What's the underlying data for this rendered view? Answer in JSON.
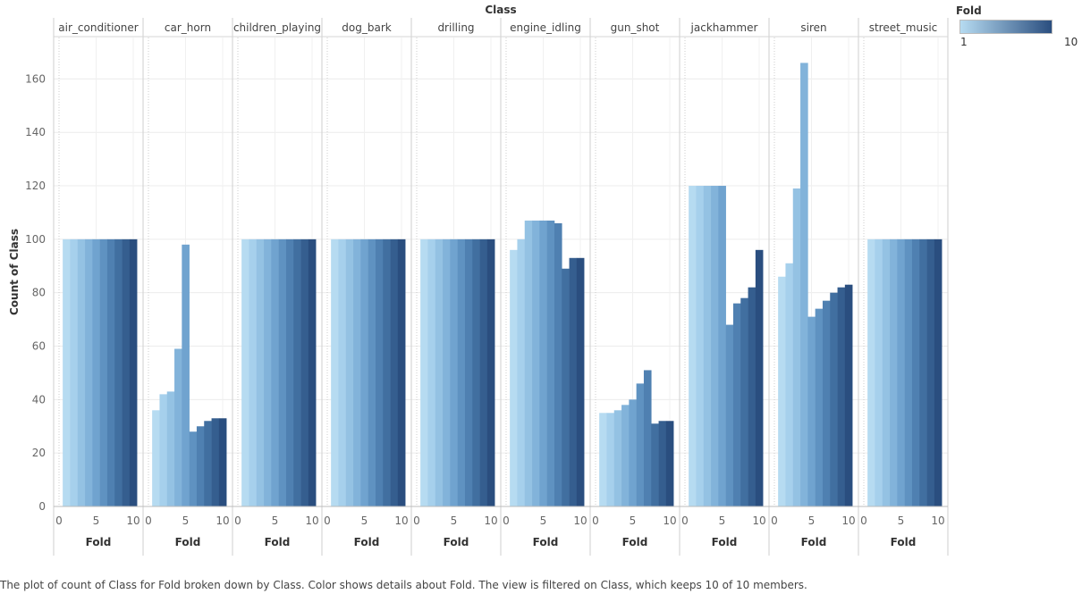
{
  "chart_data": {
    "type": "bar",
    "title": "Class",
    "xlabel": "Fold",
    "ylabel": "Count of Class",
    "ylim": [
      0,
      170
    ],
    "yticks": [
      0,
      20,
      40,
      60,
      80,
      100,
      120,
      140,
      160
    ],
    "xlim": [
      0,
      11
    ],
    "xticks": [
      0,
      5,
      10
    ],
    "legend": {
      "title": "Fold",
      "min_label": "1",
      "max_label": "10",
      "position": "top-right"
    },
    "colors": [
      "#b6dbf1",
      "#a6d0ec",
      "#94c2e3",
      "#82b3da",
      "#70a3cf",
      "#5f92c1",
      "#4f80b1",
      "#416fa0",
      "#355e8f",
      "#2a4e7f"
    ],
    "grid": true,
    "panels": [
      {
        "name": "air_conditioner",
        "values": [
          100,
          100,
          100,
          100,
          100,
          100,
          100,
          100,
          100,
          100
        ]
      },
      {
        "name": "car_horn",
        "values": [
          36,
          42,
          43,
          59,
          98,
          28,
          30,
          32,
          33,
          33
        ]
      },
      {
        "name": "children_playing",
        "values": [
          100,
          100,
          100,
          100,
          100,
          100,
          100,
          100,
          100,
          100
        ]
      },
      {
        "name": "dog_bark",
        "values": [
          100,
          100,
          100,
          100,
          100,
          100,
          100,
          100,
          100,
          100
        ]
      },
      {
        "name": "drilling",
        "values": [
          100,
          100,
          100,
          100,
          100,
          100,
          100,
          100,
          100,
          100
        ]
      },
      {
        "name": "engine_idling",
        "values": [
          96,
          100,
          107,
          107,
          107,
          107,
          106,
          89,
          93,
          93
        ]
      },
      {
        "name": "gun_shot",
        "values": [
          35,
          35,
          36,
          38,
          40,
          46,
          51,
          31,
          32,
          32
        ]
      },
      {
        "name": "jackhammer",
        "values": [
          120,
          120,
          120,
          120,
          120,
          68,
          76,
          78,
          82,
          96
        ]
      },
      {
        "name": "siren",
        "values": [
          86,
          91,
          119,
          166,
          71,
          74,
          77,
          80,
          82,
          83
        ]
      },
      {
        "name": "street_music",
        "values": [
          100,
          100,
          100,
          100,
          100,
          100,
          100,
          100,
          100,
          100
        ]
      }
    ]
  },
  "caption": "The plot of count of Class for Fold broken down by Class.  Color shows details about Fold. The view is filtered on Class, which keeps 10 of 10 members."
}
